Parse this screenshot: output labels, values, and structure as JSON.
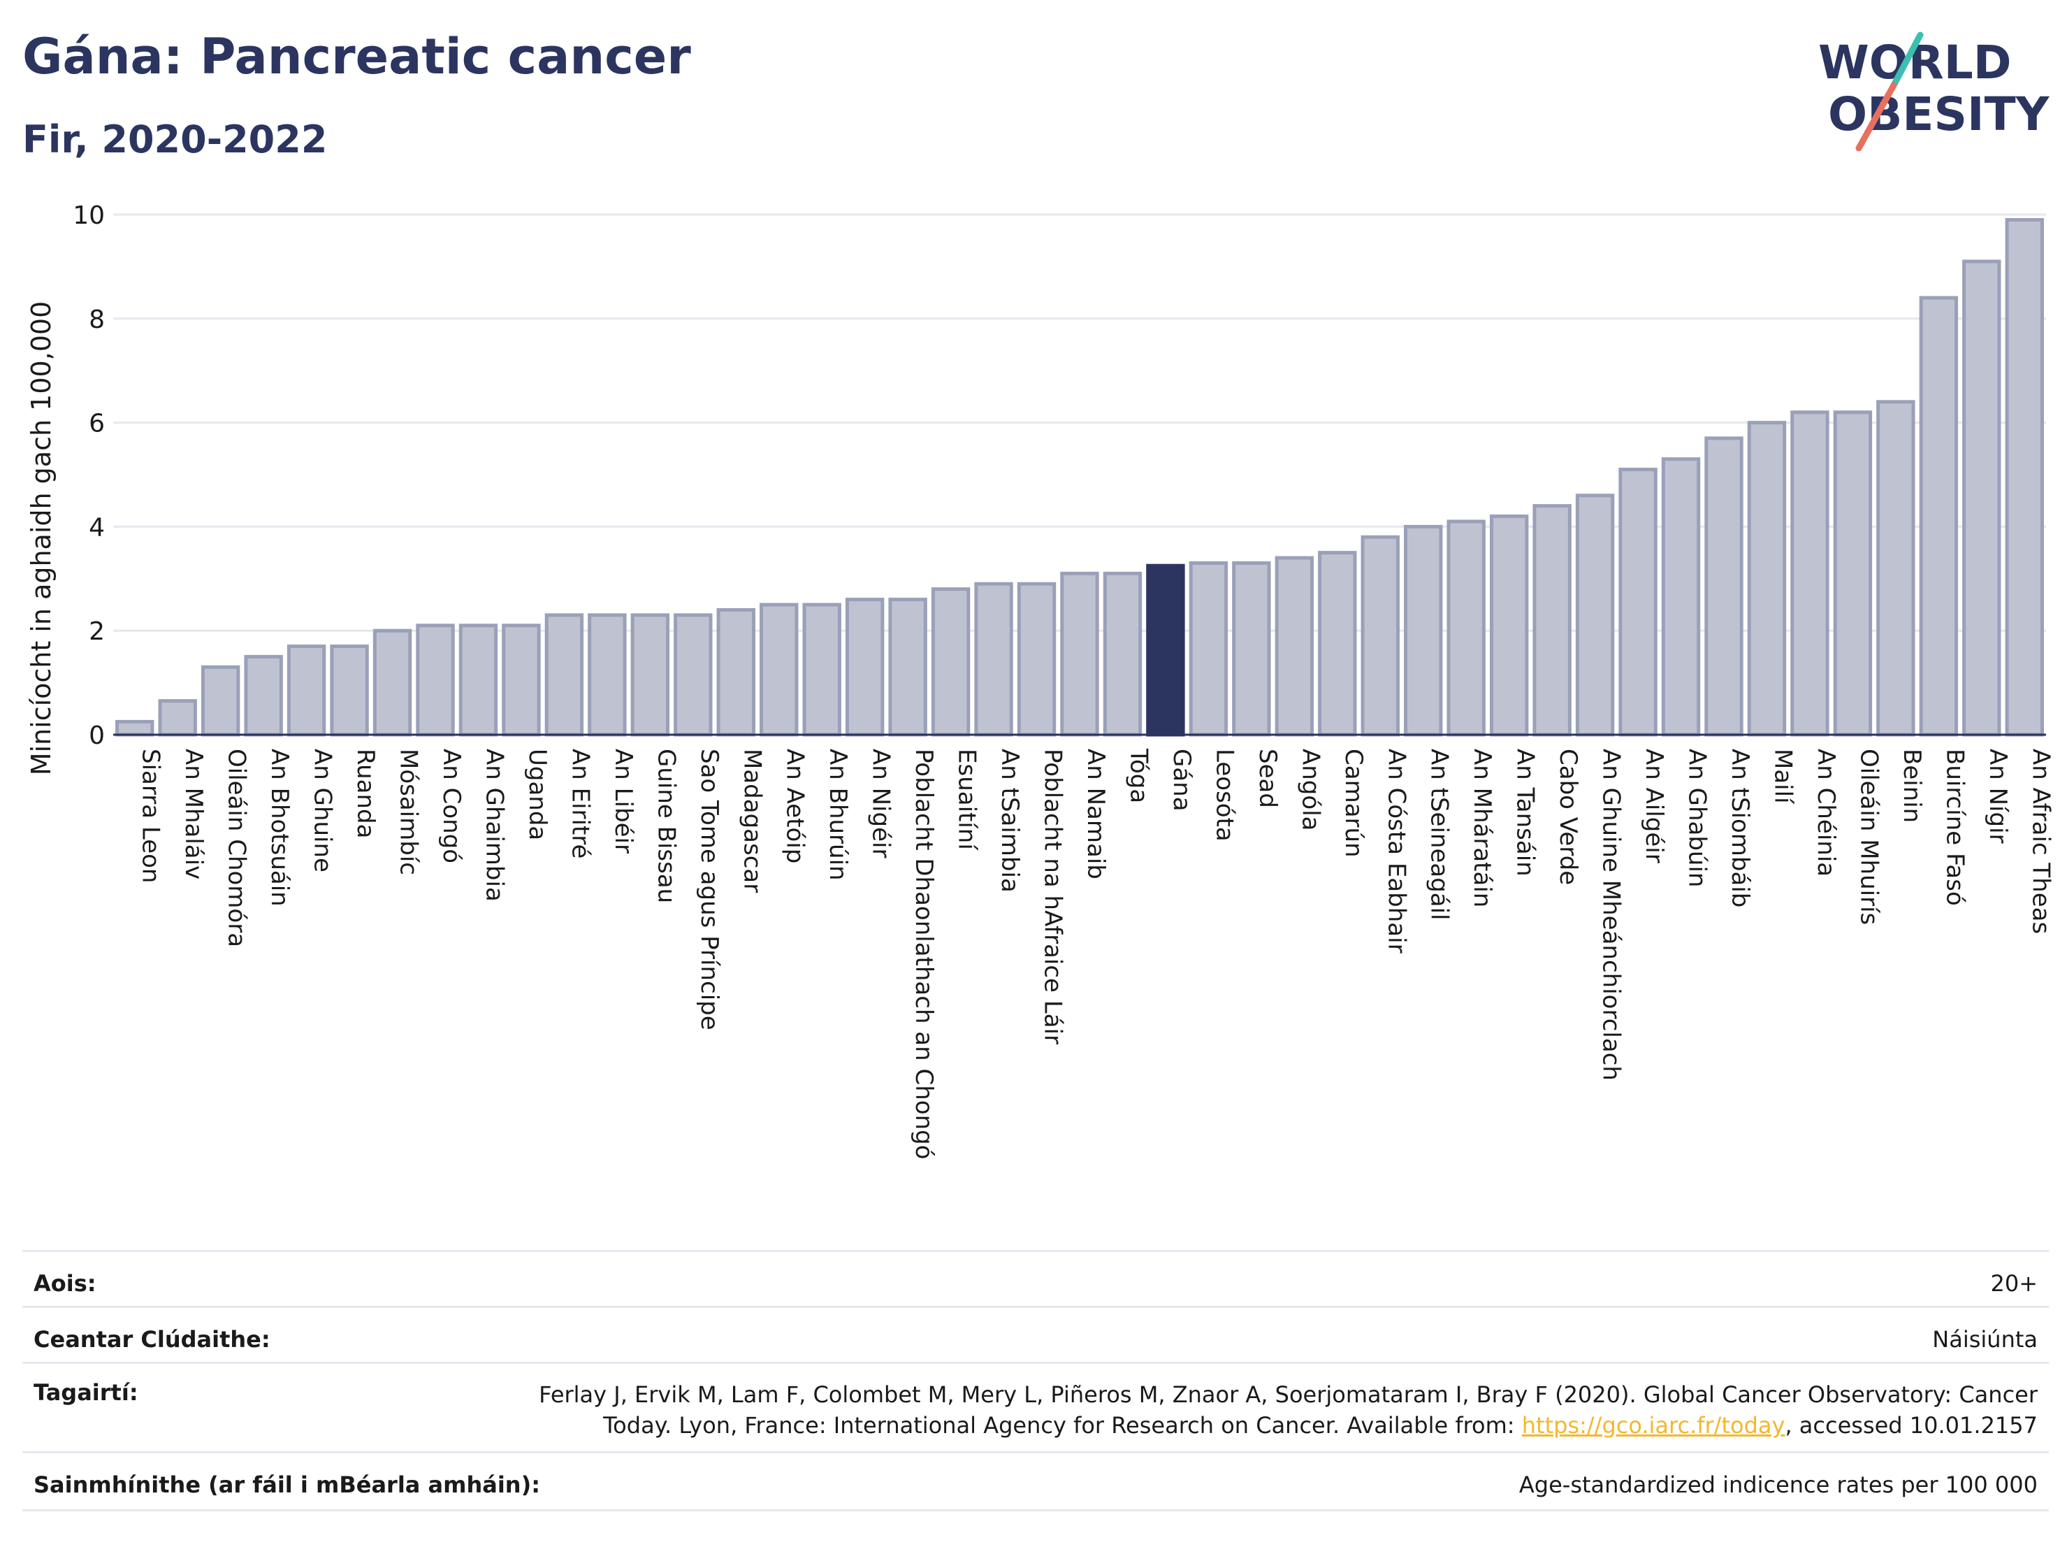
{
  "header": {
    "title": "Gána: Pancreatic cancer",
    "subtitle": "Fir, 2020-2022"
  },
  "logo": {
    "line1": "WORLD",
    "line2": "OBESITY"
  },
  "chart_data": {
    "type": "bar",
    "ylabel": "Minicíocht in aghaidh gach 100,000",
    "xlabel": "",
    "ylim": [
      0,
      10
    ],
    "yticks": [
      0,
      2,
      4,
      6,
      8,
      10
    ],
    "grid": true,
    "highlight": "Gána",
    "colors": {
      "bar": "#bfc3d1",
      "bar_border": "#9aa0b8",
      "highlight": "#2b3560"
    },
    "categories": [
      "Siarra Leon",
      "An Mhaláiv",
      "Oileáin Chomóra",
      "An Bhotsuáin",
      "An Ghuine",
      "Ruanda",
      "Mósaimbíc",
      "An Congó",
      "An Ghaimbia",
      "Uganda",
      "An Eiritré",
      "An Libéir",
      "Guine Bissau",
      "Sao Tome agus Príncipe",
      "Madagascar",
      "An Aetóip",
      "An Bhurúin",
      "An Nigéir",
      "Poblacht Dhaonlathach an Chongó",
      "Esuaitíní",
      "An tSaimbia",
      "Poblacht na hAfraice Láir",
      "An Namaib",
      "Tóga",
      "Gána",
      "Leosóta",
      "Sead",
      "Angóla",
      "Camarún",
      "An Cósta Eabhair",
      "An tSeineagáil",
      "An Mháratáin",
      "An Tansáin",
      "Cabo Verde",
      "An Ghuine Mheánchiorclach",
      "An Ailgéir",
      "An Ghabúin",
      "An tSiombáib",
      "Mailí",
      "An Chéinia",
      "Oileáin Mhuirís",
      "Beinin",
      "Buircíne Fasó",
      "An Nígir",
      "An Afraic Theas"
    ],
    "values": [
      0.25,
      0.65,
      1.3,
      1.5,
      1.7,
      1.7,
      2.0,
      2.1,
      2.1,
      2.1,
      2.3,
      2.3,
      2.3,
      2.3,
      2.4,
      2.5,
      2.5,
      2.6,
      2.6,
      2.8,
      2.9,
      2.9,
      3.1,
      3.1,
      3.25,
      3.3,
      3.3,
      3.4,
      3.5,
      3.8,
      4.0,
      4.1,
      4.2,
      4.4,
      4.6,
      5.1,
      5.3,
      5.7,
      6.0,
      6.2,
      6.2,
      6.4,
      8.4,
      9.1,
      9.9
    ]
  },
  "info": {
    "age_label": "Aois:",
    "age_value": "20+",
    "area_label": "Ceantar Clúdaithe:",
    "area_value": "Náisiúnta",
    "ref_label": "Tagairtí:",
    "ref_text": "Ferlay J, Ervik M, Lam F, Colombet M, Mery L, Piñeros M, Znaor A, Soerjomataram I, Bray F (2020). Global Cancer Observatory: Cancer Today. Lyon, France: International Agency for Research on Cancer. Available from: ",
    "ref_link": "https://gco.iarc.fr/today",
    "ref_suffix": ", accessed 10.01.2157",
    "def_label": "Sainmhínithe (ar fáil i mBéarla amháin):",
    "def_value": "Age-standardized indicence rates per 100 000"
  }
}
